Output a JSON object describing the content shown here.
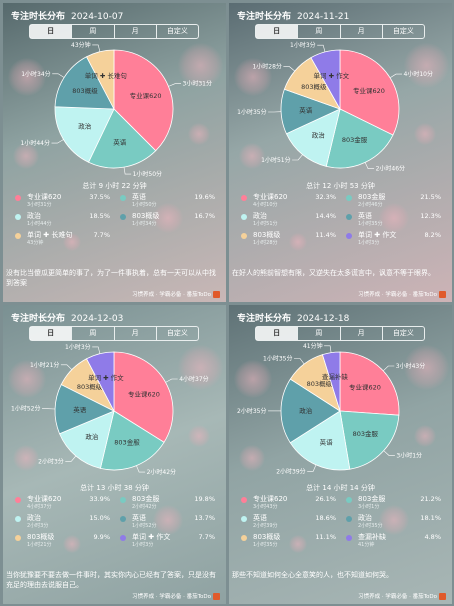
{
  "tabs": [
    "日",
    "周",
    "月",
    "自定义"
  ],
  "footer_text": "习惯养成 · 学霸必备 · 番茄ToDo",
  "panels": [
    {
      "title": "专注时长分布",
      "date": "2024-10-07",
      "total": "总计 9 小时 22 分钟",
      "quote": "没有比当傻瓜更简单的事了，为了一件事执着，总有一天可以从中找到答案",
      "legend": [
        {
          "name": "专业课620",
          "time": "3小时31分",
          "pct": "37.5%",
          "color": "#ff7f98"
        },
        {
          "name": "英语",
          "time": "1小时50分",
          "pct": "19.6%",
          "color": "#79cbc2"
        },
        {
          "name": "政治",
          "time": "1小时44分",
          "pct": "18.5%",
          "color": "#bff3f1"
        },
        {
          "name": "803概级",
          "time": "1小时34分",
          "pct": "16.7%",
          "color": "#5fa0aa"
        },
        {
          "name": "单词 ✚ 长难句",
          "time": "43分钟",
          "pct": "7.7%",
          "color": "#f5d19a"
        }
      ],
      "pie_labels": [
        "专业课620",
        "英语",
        "政治",
        "803概级",
        "单词 ✚ 长难句"
      ],
      "slice_labels": [
        "3小时31分",
        "1小时50分",
        "1小时44分",
        "1小时34分",
        "43分钟"
      ],
      "chart_data": {
        "type": "pie",
        "categories": [
          "专业课620",
          "英语",
          "政治",
          "803概级",
          "单词+长难句"
        ],
        "values": [
          37.5,
          19.6,
          18.5,
          16.7,
          7.7
        ],
        "start_angle_deg": 0
      }
    },
    {
      "title": "专注时长分布",
      "date": "2024-11-21",
      "total": "总计 12 小时 53 分钟",
      "quote": "在好人的熊前智想有限，又逆失在太多谎言中，讽意不等于眼界。",
      "legend": [
        {
          "name": "专业课620",
          "time": "4小时10分",
          "pct": "32.3%",
          "color": "#ff7f98"
        },
        {
          "name": "803金服",
          "time": "2小时46分",
          "pct": "21.5%",
          "color": "#79cbc2"
        },
        {
          "name": "政治",
          "time": "1小时51分",
          "pct": "14.4%",
          "color": "#bff3f1"
        },
        {
          "name": "英语",
          "time": "1小时35分",
          "pct": "12.3%",
          "color": "#5fa0aa"
        },
        {
          "name": "803概级",
          "time": "1小时28分",
          "pct": "11.4%",
          "color": "#f5d19a"
        },
        {
          "name": "单词 ✚ 作文",
          "time": "1小时3分",
          "pct": "8.2%",
          "color": "#8f7be8"
        }
      ],
      "pie_labels": [
        "专业课620",
        "803金服",
        "政治",
        "英语",
        "803概级",
        "单词 ✚ 作文"
      ],
      "slice_labels": [
        "4小时10分",
        "2小时46分",
        "1小时51分",
        "1小时35分",
        "1小时28分",
        "1小时3分"
      ],
      "chart_data": {
        "type": "pie",
        "categories": [
          "专业课620",
          "803金服",
          "政治",
          "英语",
          "803概级",
          "单词+作文"
        ],
        "values": [
          32.3,
          21.5,
          14.4,
          12.3,
          11.4,
          8.2
        ],
        "start_angle_deg": 0
      }
    },
    {
      "title": "专注时长分布",
      "date": "2024-12-03",
      "total": "总计 13 小时 38 分钟",
      "quote": "当你犹豫要不要去做一件事时，其实你内心已经有了答案，只是没有充足的理由去说服自己。",
      "legend": [
        {
          "name": "专业课620",
          "time": "4小时37分",
          "pct": "33.9%",
          "color": "#ff7f98"
        },
        {
          "name": "803金服",
          "time": "2小时42分",
          "pct": "19.8%",
          "color": "#79cbc2"
        },
        {
          "name": "政治",
          "time": "2小时3分",
          "pct": "15.0%",
          "color": "#bff3f1"
        },
        {
          "name": "英语",
          "time": "1小时52分",
          "pct": "13.7%",
          "color": "#5fa0aa"
        },
        {
          "name": "803概级",
          "time": "1小时21分",
          "pct": "9.9%",
          "color": "#f5d19a"
        },
        {
          "name": "单词 ✚ 作文",
          "time": "1小时3分",
          "pct": "7.7%",
          "color": "#8f7be8"
        }
      ],
      "pie_labels": [
        "专业课620",
        "803金服",
        "政治",
        "英语",
        "803概级",
        "单词 ✚ 作文"
      ],
      "slice_labels": [
        "4小时37分",
        "2小时42分",
        "2小时3分",
        "1小时52分",
        "1小时21分",
        "1小时3分"
      ],
      "chart_data": {
        "type": "pie",
        "categories": [
          "专业课620",
          "803金服",
          "政治",
          "英语",
          "803概级",
          "单词+作文"
        ],
        "values": [
          33.9,
          19.8,
          15.0,
          13.7,
          9.9,
          7.7
        ],
        "start_angle_deg": 0
      }
    },
    {
      "title": "专注时长分布",
      "date": "2024-12-18",
      "total": "总计 14 小时 14 分钟",
      "quote": "那些不知道如何全心全意笑的人，也不知道如何哭。",
      "legend": [
        {
          "name": "专业课620",
          "time": "3小时43分",
          "pct": "26.1%",
          "color": "#ff7f98"
        },
        {
          "name": "803金服",
          "time": "3小时1分",
          "pct": "21.2%",
          "color": "#79cbc2"
        },
        {
          "name": "英语",
          "time": "2小时39分",
          "pct": "18.6%",
          "color": "#bff3f1"
        },
        {
          "name": "政治",
          "time": "2小时35分",
          "pct": "18.1%",
          "color": "#5fa0aa"
        },
        {
          "name": "803概级",
          "time": "1小时35分",
          "pct": "11.1%",
          "color": "#f5d19a"
        },
        {
          "name": "查漏补缺",
          "time": "41分钟",
          "pct": "4.8%",
          "color": "#8f7be8"
        }
      ],
      "pie_labels": [
        "专业课620",
        "803金服",
        "英语",
        "政治",
        "803概级",
        "查漏补缺"
      ],
      "slice_labels": [
        "3小时43分",
        "3小时1分",
        "2小时39分",
        "2小时35分",
        "1小时35分",
        "41分钟"
      ],
      "chart_data": {
        "type": "pie",
        "categories": [
          "专业课620",
          "803金服",
          "英语",
          "政治",
          "803概级",
          "查漏补缺"
        ],
        "values": [
          26.1,
          21.2,
          18.6,
          18.1,
          11.1,
          4.8
        ],
        "start_angle_deg": 0
      }
    }
  ]
}
